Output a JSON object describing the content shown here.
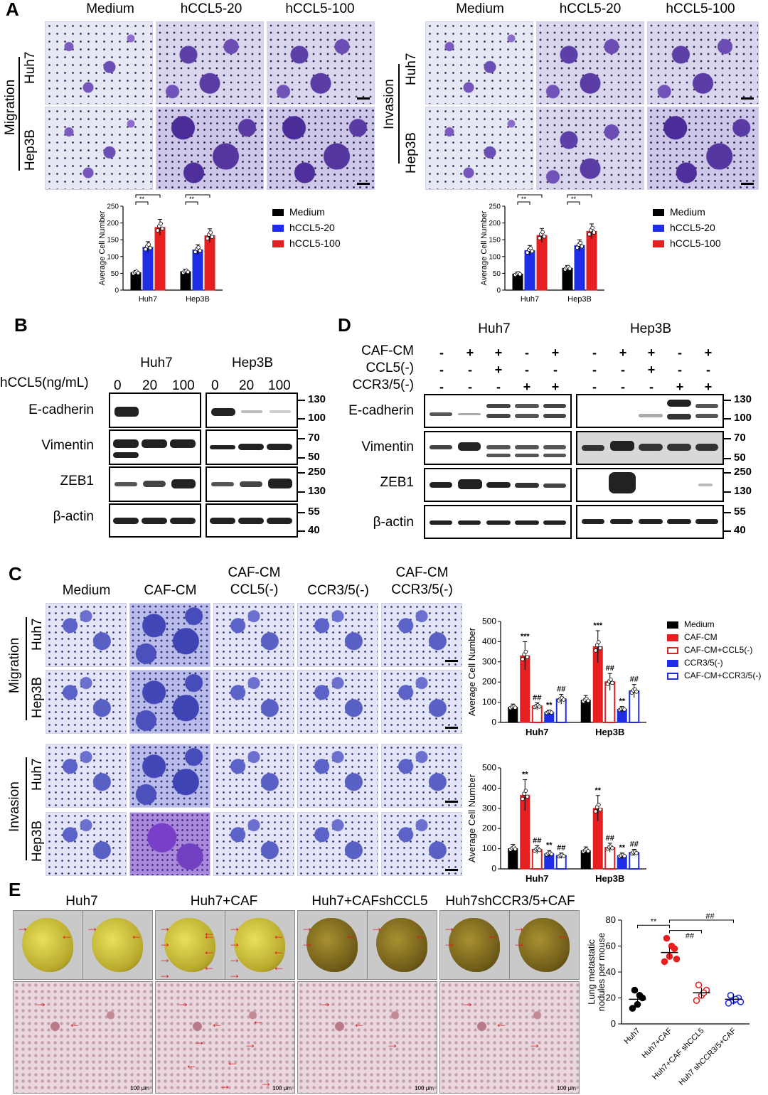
{
  "panel_A": {
    "letter": "A",
    "col_headers": [
      "Medium",
      "hCCL5-20",
      "hCCL5-100"
    ],
    "left_group_label": "Migration",
    "right_group_label": "Invasion",
    "row_labels": [
      "Huh7",
      "Hep3B"
    ],
    "legend": [
      "Medium",
      "hCCL5-20",
      "hCCL5-100"
    ]
  },
  "panel_B": {
    "letter": "B",
    "cell_lines": [
      "Huh7",
      "Hep3B"
    ],
    "treatment_label": "hCCL5(ng/mL)",
    "doses": [
      "0",
      "20",
      "100"
    ],
    "proteins": [
      "E-cadherin",
      "Vimentin",
      "ZEB1",
      "β-actin"
    ],
    "mw": [
      [
        "130",
        "100"
      ],
      [
        "70",
        "50"
      ],
      [
        "250",
        "130"
      ],
      [
        "55",
        "40"
      ]
    ]
  },
  "panel_D": {
    "letter": "D",
    "cell_lines": [
      "Huh7",
      "Hep3B"
    ],
    "conditions": [
      "CAF-CM",
      "CCL5(-)",
      "CCR3/5(-)"
    ],
    "signs": [
      [
        "-",
        "+",
        "+",
        "-",
        "+"
      ],
      [
        "-",
        "-",
        "+",
        "-",
        "-"
      ],
      [
        "-",
        "-",
        "-",
        "+",
        "+"
      ]
    ],
    "proteins": [
      "E-cadherin",
      "Vimentin",
      "ZEB1",
      "β-actin"
    ],
    "mw": [
      [
        "130",
        "100"
      ],
      [
        "70",
        "50"
      ],
      [
        "250",
        "130"
      ],
      [
        "55",
        "40"
      ]
    ]
  },
  "panel_C": {
    "letter": "C",
    "col_headers": [
      "Medium",
      "CAF-CM",
      "CAF-CM\nCCL5(-)",
      "CCR3/5(-)",
      "CAF-CM\nCCR3/5(-)"
    ],
    "col_header_lines": [
      [
        "Medium"
      ],
      [
        "CAF-CM"
      ],
      [
        "CAF-CM",
        "CCL5(-)"
      ],
      [
        "CCR3/5(-)"
      ],
      [
        "CAF-CM",
        "CCR3/5(-)"
      ]
    ],
    "group_labels": [
      "Migration",
      "Invasion"
    ],
    "row_labels": [
      "Huh7",
      "Hep3B"
    ],
    "legend": [
      "Medium",
      "CAF-CM",
      "CAF-CM+CCL5(-)",
      "CCR3/5(-)",
      "CAF-CM+CCR3/5(-)"
    ]
  },
  "panel_E": {
    "letter": "E",
    "group_headers": [
      "Huh7",
      "Huh7+CAF",
      "Huh7+CAFshCCL5",
      "Huh7shCCR3/5+CAF"
    ],
    "scale_text": "100 μm"
  },
  "chart_data": [
    {
      "id": "A-migration",
      "type": "bar",
      "ylabel": "Average Cell Number",
      "ylim": [
        0,
        250
      ],
      "yticks": [
        0,
        50,
        100,
        150,
        200,
        250
      ],
      "categories": [
        "Huh7",
        "Hep3B"
      ],
      "series": [
        {
          "name": "Medium",
          "values": [
            52,
            55
          ],
          "color": "#000000"
        },
        {
          "name": "hCCL5-20",
          "values": [
            128,
            120
          ],
          "color": "#1f2ee6"
        },
        {
          "name": "hCCL5-100",
          "values": [
            187,
            162
          ],
          "color": "#e62020"
        }
      ],
      "annotations": [
        "**",
        "***",
        "**",
        "***"
      ]
    },
    {
      "id": "A-invasion",
      "type": "bar",
      "ylabel": "Average Cell Number",
      "ylim": [
        0,
        250
      ],
      "yticks": [
        0,
        50,
        100,
        150,
        200,
        250
      ],
      "categories": [
        "Huh7",
        "Hep3B"
      ],
      "series": [
        {
          "name": "Medium",
          "values": [
            48,
            65
          ],
          "color": "#000000"
        },
        {
          "name": "hCCL5-20",
          "values": [
            118,
            133
          ],
          "color": "#1f2ee6"
        },
        {
          "name": "hCCL5-100",
          "values": [
            163,
            175
          ],
          "color": "#e62020"
        }
      ],
      "annotations": [
        "**",
        "***",
        "**",
        "***"
      ]
    },
    {
      "id": "C-migration",
      "type": "bar",
      "ylabel": "Average Cell Number",
      "ylim": [
        0,
        500
      ],
      "yticks": [
        0,
        100,
        200,
        300,
        400,
        500
      ],
      "categories": [
        "Huh7",
        "Hep3B"
      ],
      "series": [
        {
          "name": "Medium",
          "values": [
            75,
            110
          ],
          "style": "filled",
          "color": "#000000"
        },
        {
          "name": "CAF-CM",
          "values": [
            330,
            375
          ],
          "style": "filled",
          "color": "#e62020"
        },
        {
          "name": "CAF-CM+CCL5(-)",
          "values": [
            80,
            200
          ],
          "style": "open",
          "color": "#e62020"
        },
        {
          "name": "CCR3/5(-)",
          "values": [
            50,
            65
          ],
          "style": "filled",
          "color": "#1f2ee6"
        },
        {
          "name": "CAF-CM+CCR3/5(-)",
          "values": [
            115,
            155
          ],
          "style": "open",
          "color": "#1f2ee6"
        }
      ],
      "annotations": [
        [
          "",
          "***",
          "##",
          "**",
          "##"
        ],
        [
          "",
          "***",
          "##",
          "**",
          "##"
        ]
      ]
    },
    {
      "id": "C-invasion",
      "type": "bar",
      "ylabel": "Average Cell Number",
      "ylim": [
        0,
        500
      ],
      "yticks": [
        0,
        100,
        200,
        300,
        400,
        500
      ],
      "categories": [
        "Huh7",
        "Hep3B"
      ],
      "series": [
        {
          "name": "Medium",
          "values": [
            100,
            90
          ],
          "style": "filled",
          "color": "#000000"
        },
        {
          "name": "CAF-CM",
          "values": [
            365,
            300
          ],
          "style": "filled",
          "color": "#e62020"
        },
        {
          "name": "CAF-CM+CCL5(-)",
          "values": [
            95,
            105
          ],
          "style": "open",
          "color": "#e62020"
        },
        {
          "name": "CCR3/5(-)",
          "values": [
            75,
            65
          ],
          "style": "filled",
          "color": "#1f2ee6"
        },
        {
          "name": "CAF-CM+CCR3/5(-)",
          "values": [
            65,
            80
          ],
          "style": "open",
          "color": "#1f2ee6"
        }
      ],
      "annotations": [
        [
          "",
          "**",
          "##",
          "**",
          "##"
        ],
        [
          "",
          "**",
          "##",
          "**",
          "##"
        ]
      ]
    },
    {
      "id": "E-nodules",
      "type": "scatter",
      "ylabel": "Lung metastatic nodules per mouse",
      "ylim": [
        0,
        80
      ],
      "yticks": [
        0,
        20,
        40,
        60,
        80
      ],
      "categories": [
        "Huh7",
        "Huh7+CAF",
        "Huh7+CAF shCCL5",
        "Huh7 shCCR3/5+CAF"
      ],
      "groups": [
        {
          "name": "Huh7",
          "mean": 19,
          "points": [
            12,
            15,
            20,
            26,
            22
          ],
          "color": "#000000",
          "marker": "filled"
        },
        {
          "name": "Huh7+CAF",
          "mean": 55,
          "points": [
            48,
            52,
            58,
            66,
            60,
            50
          ],
          "color": "#e62020",
          "marker": "filled"
        },
        {
          "name": "Huh7+CAF shCCL5",
          "mean": 24,
          "points": [
            18,
            22,
            26,
            30,
            24
          ],
          "color": "#e62020",
          "marker": "open"
        },
        {
          "name": "Huh7 shCCR3/5+CAF",
          "mean": 19,
          "points": [
            16,
            18,
            20,
            22,
            19,
            17
          ],
          "color": "#1f2ee6",
          "marker": "open"
        }
      ],
      "annotations": [
        "**",
        "##",
        "##"
      ]
    }
  ]
}
